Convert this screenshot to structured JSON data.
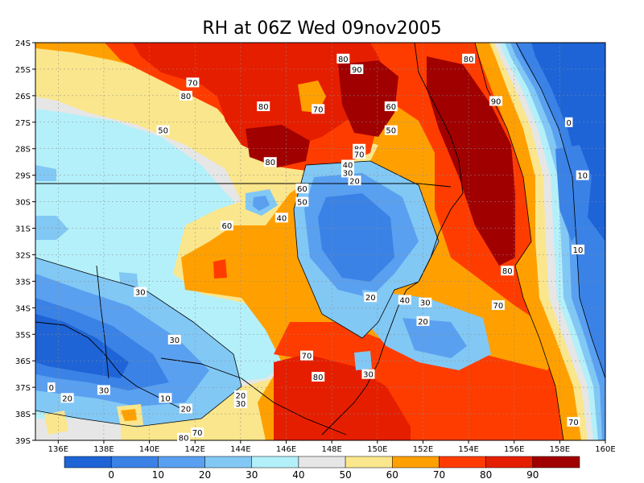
{
  "chart_data": {
    "type": "heatmap",
    "title": "RH at 06Z Wed 09nov2005",
    "xlabel": "",
    "ylabel": "",
    "x_ticks": [
      "136E",
      "138E",
      "140E",
      "142E",
      "144E",
      "146E",
      "148E",
      "150E",
      "152E",
      "154E",
      "156E",
      "158E",
      "160E"
    ],
    "y_ticks": [
      "24S",
      "25S",
      "26S",
      "27S",
      "28S",
      "29S",
      "30S",
      "31S",
      "32S",
      "33S",
      "34S",
      "35S",
      "36S",
      "37S",
      "38S",
      "39S"
    ],
    "xlim": [
      135,
      160
    ],
    "ylim": [
      -39,
      -24
    ],
    "grid": true,
    "contour_levels": [
      0,
      10,
      20,
      30,
      40,
      50,
      60,
      70,
      80,
      90
    ],
    "colorbar": {
      "labels": [
        "0",
        "10",
        "20",
        "30",
        "40",
        "50",
        "60",
        "70",
        "80",
        "90"
      ],
      "colors": [
        "#1e64d7",
        "#3a82e6",
        "#5aa0f0",
        "#82c8f5",
        "#b4f0fa",
        "#e6e6e6",
        "#fae68c",
        "#ffa000",
        "#ff3c00",
        "#e61e00",
        "#a00000"
      ]
    },
    "contour_labels": [
      {
        "text": "80",
        "lon": 148.5,
        "lat": -24.6
      },
      {
        "text": "90",
        "lon": 149.1,
        "lat": -25.0
      },
      {
        "text": "80",
        "lon": 154.0,
        "lat": -24.6
      },
      {
        "text": "70",
        "lon": 141.9,
        "lat": -25.5
      },
      {
        "text": "80",
        "lon": 141.6,
        "lat": -26.0
      },
      {
        "text": "80",
        "lon": 145.0,
        "lat": -26.4
      },
      {
        "text": "70",
        "lon": 147.4,
        "lat": -26.5
      },
      {
        "text": "90",
        "lon": 155.2,
        "lat": -26.2
      },
      {
        "text": "60",
        "lon": 150.6,
        "lat": -26.4
      },
      {
        "text": "0",
        "lon": 158.4,
        "lat": -27.0
      },
      {
        "text": "50",
        "lon": 140.6,
        "lat": -27.3
      },
      {
        "text": "50",
        "lon": 150.6,
        "lat": -27.3
      },
      {
        "text": "80",
        "lon": 149.2,
        "lat": -28.0
      },
      {
        "text": "70",
        "lon": 149.2,
        "lat": -28.2
      },
      {
        "text": "80",
        "lon": 145.3,
        "lat": -28.5
      },
      {
        "text": "40",
        "lon": 148.7,
        "lat": -28.6
      },
      {
        "text": "30",
        "lon": 148.7,
        "lat": -28.9
      },
      {
        "text": "20",
        "lon": 149.0,
        "lat": -29.2
      },
      {
        "text": "10",
        "lon": 159.0,
        "lat": -29.0
      },
      {
        "text": "60",
        "lon": 146.7,
        "lat": -29.5
      },
      {
        "text": "50",
        "lon": 146.7,
        "lat": -30.0
      },
      {
        "text": "40",
        "lon": 145.8,
        "lat": -30.6
      },
      {
        "text": "60",
        "lon": 143.4,
        "lat": -30.9
      },
      {
        "text": "10",
        "lon": 158.8,
        "lat": -31.8
      },
      {
        "text": "80",
        "lon": 155.7,
        "lat": -32.6
      },
      {
        "text": "30",
        "lon": 139.6,
        "lat": -33.4
      },
      {
        "text": "20",
        "lon": 149.7,
        "lat": -33.6
      },
      {
        "text": "40",
        "lon": 151.2,
        "lat": -33.7
      },
      {
        "text": "30",
        "lon": 152.1,
        "lat": -33.8
      },
      {
        "text": "70",
        "lon": 155.3,
        "lat": -33.9
      },
      {
        "text": "20",
        "lon": 152.0,
        "lat": -34.5
      },
      {
        "text": "30",
        "lon": 141.1,
        "lat": -35.2
      },
      {
        "text": "70",
        "lon": 146.9,
        "lat": -35.8
      },
      {
        "text": "30",
        "lon": 149.6,
        "lat": -36.5
      },
      {
        "text": "80",
        "lon": 147.4,
        "lat": -36.6
      },
      {
        "text": "0",
        "lon": 135.7,
        "lat": -37.0
      },
      {
        "text": "20",
        "lon": 136.4,
        "lat": -37.4
      },
      {
        "text": "30",
        "lon": 138.0,
        "lat": -37.1
      },
      {
        "text": "10",
        "lon": 140.7,
        "lat": -37.4
      },
      {
        "text": "20",
        "lon": 144.0,
        "lat": -37.3
      },
      {
        "text": "30",
        "lon": 144.0,
        "lat": -37.6
      },
      {
        "text": "20",
        "lon": 141.6,
        "lat": -37.8
      },
      {
        "text": "70",
        "lon": 158.6,
        "lat": -38.3
      },
      {
        "text": "70",
        "lon": 142.1,
        "lat": -38.7
      },
      {
        "text": "80",
        "lon": 141.5,
        "lat": -38.9
      }
    ]
  }
}
